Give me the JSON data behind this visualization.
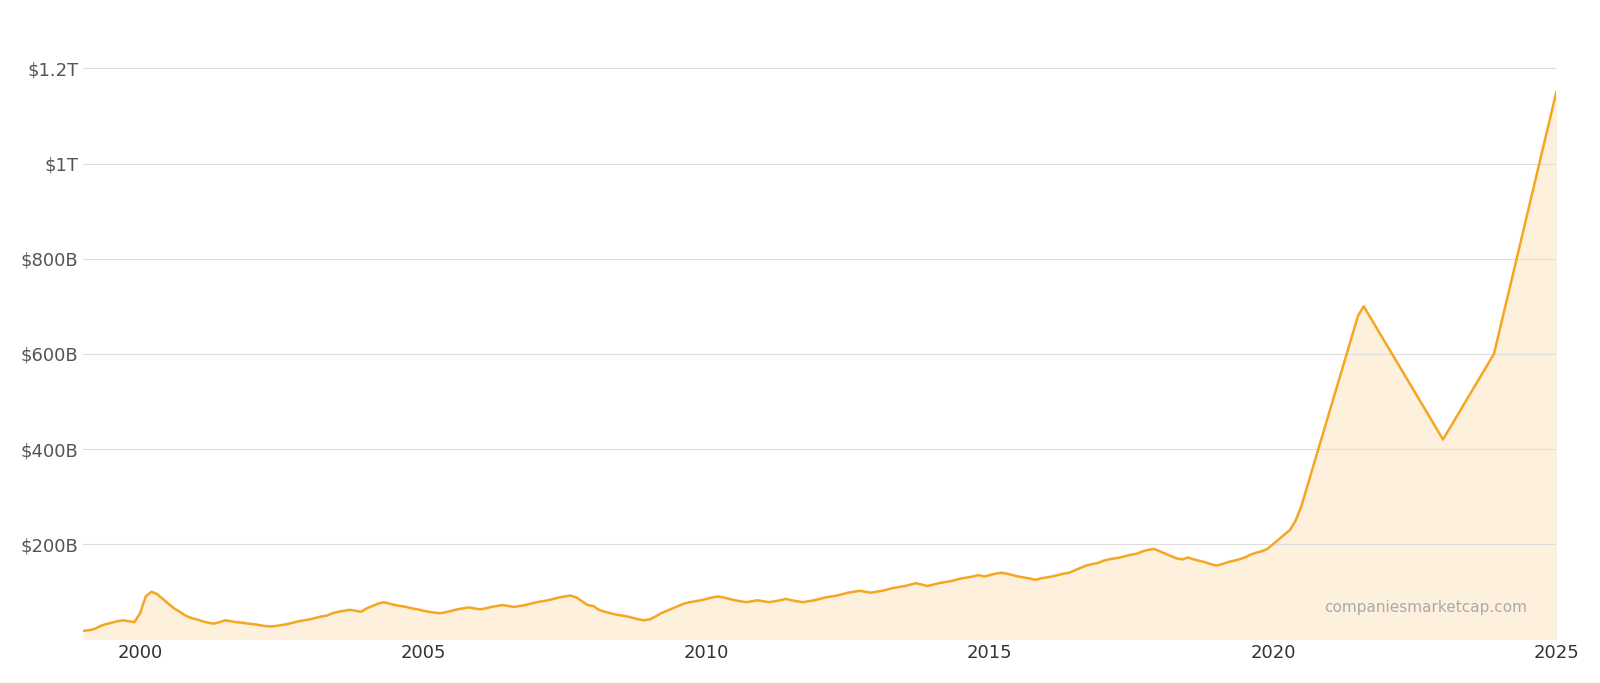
{
  "background_color": "#ffffff",
  "line_color": "#f5a623",
  "fill_color": "#fdf0dc",
  "grid_color": "#dddddd",
  "text_color": "#333333",
  "ylabel_color": "#555555",
  "xlabel_ticks": [
    2000,
    2005,
    2010,
    2015,
    2020,
    2025
  ],
  "ytick_labels": [
    "$200B",
    "$400B",
    "$600B",
    "$800B",
    "$1T",
    "$1.2T"
  ],
  "ytick_values": [
    200,
    400,
    600,
    800,
    1000,
    1200
  ],
  "ylim": [
    0,
    1300
  ],
  "watermark": "companiesmarketcap.com",
  "data_years": [
    1999.0,
    1999.1,
    1999.2,
    1999.3,
    1999.4,
    1999.5,
    1999.6,
    1999.7,
    1999.8,
    1999.9,
    2000.0,
    2000.1,
    2000.2,
    2000.3,
    2000.4,
    2000.5,
    2000.6,
    2000.7,
    2000.8,
    2000.9,
    2001.0,
    2001.1,
    2001.2,
    2001.3,
    2001.4,
    2001.5,
    2001.6,
    2001.7,
    2001.8,
    2001.9,
    2002.0,
    2002.1,
    2002.2,
    2002.3,
    2002.4,
    2002.5,
    2002.6,
    2002.7,
    2002.8,
    2002.9,
    2003.0,
    2003.1,
    2003.2,
    2003.3,
    2003.4,
    2003.5,
    2003.6,
    2003.7,
    2003.8,
    2003.9,
    2004.0,
    2004.1,
    2004.2,
    2004.3,
    2004.4,
    2004.5,
    2004.6,
    2004.7,
    2004.8,
    2004.9,
    2005.0,
    2005.1,
    2005.2,
    2005.3,
    2005.4,
    2005.5,
    2005.6,
    2005.7,
    2005.8,
    2005.9,
    2006.0,
    2006.1,
    2006.2,
    2006.3,
    2006.4,
    2006.5,
    2006.6,
    2006.7,
    2006.8,
    2006.9,
    2007.0,
    2007.1,
    2007.2,
    2007.3,
    2007.4,
    2007.5,
    2007.6,
    2007.7,
    2007.8,
    2007.9,
    2008.0,
    2008.1,
    2008.2,
    2008.3,
    2008.4,
    2008.5,
    2008.6,
    2008.7,
    2008.8,
    2008.9,
    2009.0,
    2009.1,
    2009.2,
    2009.3,
    2009.4,
    2009.5,
    2009.6,
    2009.7,
    2009.8,
    2009.9,
    2010.0,
    2010.1,
    2010.2,
    2010.3,
    2010.4,
    2010.5,
    2010.6,
    2010.7,
    2010.8,
    2010.9,
    2011.0,
    2011.1,
    2011.2,
    2011.3,
    2011.4,
    2011.5,
    2011.6,
    2011.7,
    2011.8,
    2011.9,
    2012.0,
    2012.1,
    2012.2,
    2012.3,
    2012.4,
    2012.5,
    2012.6,
    2012.7,
    2012.8,
    2012.9,
    2013.0,
    2013.1,
    2013.2,
    2013.3,
    2013.4,
    2013.5,
    2013.6,
    2013.7,
    2013.8,
    2013.9,
    2014.0,
    2014.1,
    2014.2,
    2014.3,
    2014.4,
    2014.5,
    2014.6,
    2014.7,
    2014.8,
    2014.9,
    2015.0,
    2015.1,
    2015.2,
    2015.3,
    2015.4,
    2015.5,
    2015.6,
    2015.7,
    2015.8,
    2015.9,
    2016.0,
    2016.1,
    2016.2,
    2016.3,
    2016.4,
    2016.5,
    2016.6,
    2016.7,
    2016.8,
    2016.9,
    2017.0,
    2017.1,
    2017.2,
    2017.3,
    2017.4,
    2017.5,
    2017.6,
    2017.7,
    2017.8,
    2017.9,
    2018.0,
    2018.1,
    2018.2,
    2018.3,
    2018.4,
    2018.5,
    2018.6,
    2018.7,
    2018.8,
    2018.9,
    2019.0,
    2019.1,
    2019.2,
    2019.3,
    2019.4,
    2019.5,
    2019.6,
    2019.7,
    2019.8,
    2019.9,
    2020.0,
    2020.1,
    2020.2,
    2020.3,
    2020.4,
    2020.5,
    2020.6,
    2020.7,
    2020.8,
    2020.9,
    2021.0,
    2021.1,
    2021.2,
    2021.3,
    2021.4,
    2021.5,
    2021.6,
    2021.7,
    2021.8,
    2021.9,
    2022.0,
    2022.1,
    2022.2,
    2022.3,
    2022.4,
    2022.5,
    2022.6,
    2022.7,
    2022.8,
    2022.9,
    2023.0,
    2023.1,
    2023.2,
    2023.3,
    2023.4,
    2023.5,
    2023.6,
    2023.7,
    2023.8,
    2023.9,
    2024.0,
    2024.1,
    2024.2,
    2024.3,
    2024.4,
    2024.5,
    2024.6,
    2024.7,
    2024.8,
    2024.9,
    2025.0
  ],
  "data_values": [
    18,
    19,
    22,
    28,
    32,
    35,
    38,
    40,
    38,
    36,
    55,
    90,
    100,
    95,
    85,
    75,
    65,
    58,
    50,
    45,
    42,
    38,
    35,
    33,
    36,
    40,
    38,
    36,
    35,
    33,
    32,
    30,
    28,
    27,
    28,
    30,
    32,
    35,
    38,
    40,
    42,
    45,
    48,
    50,
    55,
    58,
    60,
    62,
    60,
    58,
    65,
    70,
    75,
    78,
    75,
    72,
    70,
    68,
    65,
    63,
    60,
    58,
    56,
    55,
    57,
    60,
    63,
    65,
    67,
    65,
    63,
    65,
    68,
    70,
    72,
    70,
    68,
    70,
    72,
    75,
    78,
    80,
    82,
    85,
    88,
    90,
    92,
    88,
    80,
    72,
    70,
    62,
    58,
    55,
    52,
    50,
    48,
    45,
    42,
    40,
    42,
    48,
    55,
    60,
    65,
    70,
    75,
    78,
    80,
    82,
    85,
    88,
    90,
    88,
    85,
    82,
    80,
    78,
    80,
    82,
    80,
    78,
    80,
    82,
    85,
    82,
    80,
    78,
    80,
    82,
    85,
    88,
    90,
    92,
    95,
    98,
    100,
    102,
    100,
    98,
    100,
    102,
    105,
    108,
    110,
    112,
    115,
    118,
    115,
    112,
    115,
    118,
    120,
    122,
    125,
    128,
    130,
    132,
    135,
    132,
    135,
    138,
    140,
    138,
    135,
    132,
    130,
    128,
    125,
    128,
    130,
    132,
    135,
    138,
    140,
    145,
    150,
    155,
    158,
    160,
    165,
    168,
    170,
    172,
    175,
    178,
    180,
    185,
    188,
    190,
    185,
    180,
    175,
    170,
    168,
    172,
    168,
    165,
    162,
    158,
    155,
    158,
    162,
    165,
    168,
    172,
    178,
    182,
    185,
    190,
    200,
    210,
    220,
    230,
    250,
    280,
    320,
    360,
    400,
    440,
    480,
    520,
    560,
    600,
    640,
    680,
    700,
    680,
    660,
    640,
    620,
    600,
    580,
    560,
    540,
    520,
    500,
    480,
    460,
    440,
    420,
    440,
    460,
    480,
    500,
    520,
    540,
    560,
    580,
    600,
    650,
    700,
    750,
    800,
    850,
    900,
    950,
    1000,
    1050,
    1100,
    1150
  ]
}
